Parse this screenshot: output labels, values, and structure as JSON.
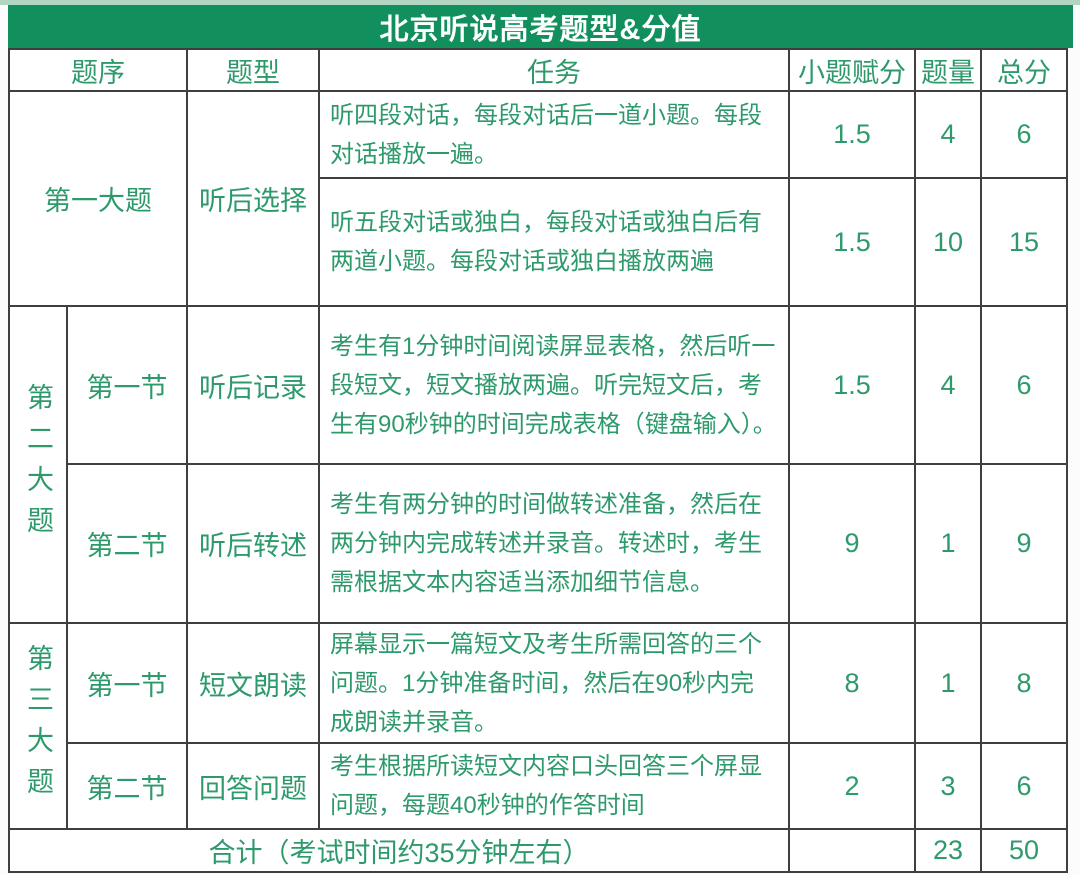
{
  "title": "北京听说高考题型&分值",
  "header": {
    "order": "题序",
    "type": "题型",
    "task": "任务",
    "score": "小题赋分",
    "qty": "题量",
    "total": "总分"
  },
  "groups": [
    {
      "section": "第一大题",
      "type": "听后选择",
      "rows": [
        {
          "task": "听四段对话，每段对话后一道小题。每段对话播放一遍。",
          "score": "1.5",
          "qty": "4",
          "total": "6"
        },
        {
          "task": "听五段对话或独白，每段对话或独白后有两道小题。每段对话或独白播放两遍",
          "score": "1.5",
          "qty": "10",
          "total": "15"
        }
      ]
    },
    {
      "section": "第二大题",
      "rows": [
        {
          "part": "第一节",
          "type": "听后记录",
          "task": "考生有1分钟时间阅读屏显表格，然后听一段短文，短文播放两遍。听完短文后，考生有90秒钟的时间完成表格（键盘输入）。",
          "score": "1.5",
          "qty": "4",
          "total": "6"
        },
        {
          "part": "第二节",
          "type": "听后转述",
          "task": "考生有两分钟的时间做转述准备，然后在两分钟内完成转述并录音。转述时，考生需根据文本内容适当添加细节信息。",
          "score": "9",
          "qty": "1",
          "total": "9"
        }
      ]
    },
    {
      "section": "第三大题",
      "rows": [
        {
          "part": "第一节",
          "type": "短文朗读",
          "task": "屏幕显示一篇短文及考生所需回答的三个问题。1分钟准备时间，然后在90秒内完成朗读并录音。",
          "score": "8",
          "qty": "1",
          "total": "8"
        },
        {
          "part": "第二节",
          "type": "回答问题",
          "task": "考生根据所读短文内容口头回答三个屏显问题，每题40秒钟的作答时间",
          "score": "2",
          "qty": "3",
          "total": "6"
        }
      ]
    }
  ],
  "footer": {
    "label": "合计（考试时间约35分钟左右）",
    "score": "",
    "qty": "23",
    "total": "50"
  },
  "colors": {
    "title_bg": "#11905e",
    "text_green": "#2e9a6c",
    "border": "#3f3f3f"
  }
}
